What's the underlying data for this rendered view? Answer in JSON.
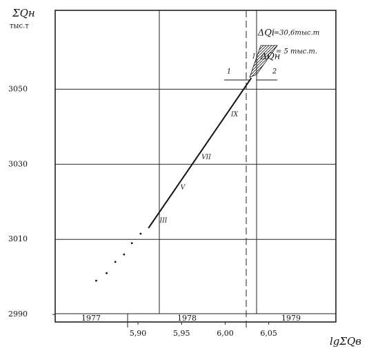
{
  "chart_data": {
    "type": "line",
    "y_label": "ΣQн",
    "y_unit": "тыс.т",
    "x_label": "lgΣQв",
    "xlim": [
      5.805,
      6.127
    ],
    "xticks": [
      {
        "value": 5.9,
        "label": "5,90"
      },
      {
        "value": 5.95,
        "label": "5,95"
      },
      {
        "value": 6.0,
        "label": "6,00"
      },
      {
        "value": 6.05,
        "label": "6,05"
      }
    ],
    "ylim": [
      2988,
      3071
    ],
    "yticks": [
      2990,
      3010,
      3030,
      3050
    ],
    "grid": true,
    "series": [
      {
        "color": "#111111",
        "style": "solid",
        "x": [
          5.912,
          6.03
        ],
        "values": [
          3013,
          3053
        ]
      },
      {
        "color": "#111111",
        "style": "dotted",
        "x": [
          5.852,
          5.864,
          5.874,
          5.884,
          5.893,
          5.903
        ],
        "values": [
          2999,
          3001,
          3004,
          3006,
          3009,
          3011.5
        ]
      }
    ],
    "periods": [
      "1977",
      "1978",
      "1979"
    ],
    "annotations": [
      "ΔQi",
      "=30,6тыс.т",
      "ΔQн",
      "= 5 тыс.т.",
      "1",
      "2",
      "III",
      "V",
      "VII",
      "IX",
      "I"
    ]
  }
}
